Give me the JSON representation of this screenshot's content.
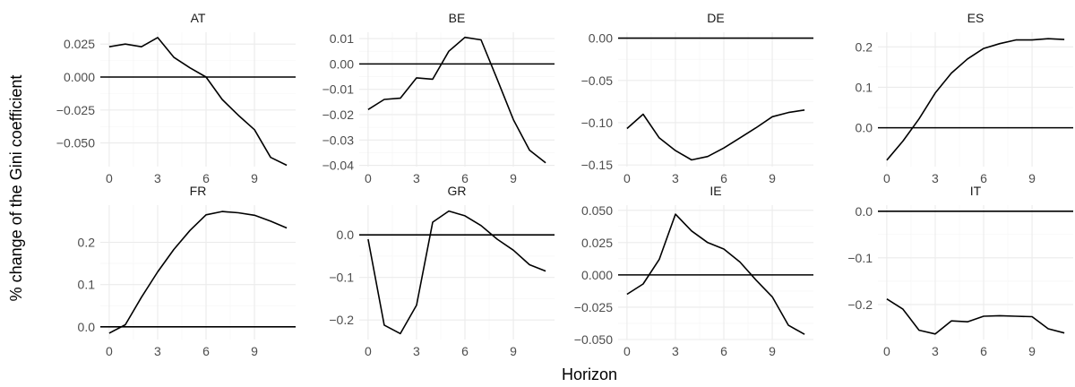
{
  "chart_data": {
    "type": "line",
    "xlabel": "Horizon",
    "ylabel": "% change of the Gini coefficient",
    "x_ticks": [
      0,
      3,
      6,
      9
    ],
    "reference_line": 0,
    "panels": [
      {
        "title": "AT",
        "x": [
          0,
          1,
          2,
          3,
          4,
          5,
          6,
          7,
          8,
          9,
          10,
          11
        ],
        "y": [
          0.023,
          0.025,
          0.023,
          0.03,
          0.015,
          0.007,
          0.0,
          -0.017,
          -0.029,
          -0.04,
          -0.061,
          -0.067
        ],
        "ylim": [
          -0.068,
          0.034
        ],
        "y_ticks": [
          0.025,
          0.0,
          -0.025,
          -0.05
        ],
        "y_tick_labels": [
          "0.025",
          "0.000",
          "−0.025",
          "−0.050"
        ]
      },
      {
        "title": "BE",
        "x": [
          0,
          1,
          2,
          3,
          4,
          5,
          6,
          7,
          8,
          9,
          10,
          11
        ],
        "y": [
          -0.018,
          -0.014,
          -0.0135,
          -0.0055,
          -0.006,
          0.005,
          0.0105,
          0.0095,
          -0.006,
          -0.022,
          -0.034,
          -0.039
        ],
        "ylim": [
          -0.0405,
          0.0125
        ],
        "y_ticks": [
          0.01,
          0.0,
          -0.01,
          -0.02,
          -0.03,
          -0.04
        ],
        "y_tick_labels": [
          "0.01",
          "0.00",
          "−0.01",
          "−0.02",
          "−0.03",
          "−0.04"
        ]
      },
      {
        "title": "DE",
        "x": [
          0,
          1,
          2,
          3,
          4,
          5,
          6,
          7,
          8,
          9,
          10,
          11
        ],
        "y": [
          -0.107,
          -0.09,
          -0.118,
          -0.133,
          -0.144,
          -0.14,
          -0.13,
          -0.118,
          -0.106,
          -0.093,
          -0.088,
          -0.085
        ],
        "ylim": [
          -0.152,
          0.007
        ],
        "y_ticks": [
          0.0,
          -0.05,
          -0.1,
          -0.15
        ],
        "y_tick_labels": [
          "0.00",
          "−0.05",
          "−0.10",
          "−0.15"
        ]
      },
      {
        "title": "ES",
        "x": [
          0,
          1,
          2,
          3,
          4,
          5,
          6,
          7,
          8,
          9,
          10,
          11
        ],
        "y": [
          -0.08,
          -0.033,
          0.022,
          0.086,
          0.135,
          0.17,
          0.196,
          0.208,
          0.217,
          0.217,
          0.22,
          0.218
        ],
        "ylim": [
          -0.096,
          0.236
        ],
        "y_ticks": [
          0.2,
          0.1,
          0.0
        ],
        "y_tick_labels": [
          "0.2",
          "0.1",
          "0.0"
        ]
      },
      {
        "title": "FR",
        "x": [
          0,
          1,
          2,
          3,
          4,
          5,
          6,
          7,
          8,
          9,
          10,
          11
        ],
        "y": [
          -0.015,
          0.005,
          0.07,
          0.13,
          0.183,
          0.228,
          0.265,
          0.273,
          0.27,
          0.264,
          0.25,
          0.234
        ],
        "ylim": [
          -0.03,
          0.288
        ],
        "y_ticks": [
          0.2,
          0.1,
          0.0
        ],
        "y_tick_labels": [
          "0.2",
          "0.1",
          "0.0"
        ]
      },
      {
        "title": "GR",
        "x": [
          0,
          1,
          2,
          3,
          4,
          5,
          6,
          7,
          8,
          9,
          10,
          11
        ],
        "y": [
          -0.01,
          -0.212,
          -0.232,
          -0.165,
          0.03,
          0.056,
          0.045,
          0.022,
          -0.01,
          -0.036,
          -0.07,
          -0.085
        ],
        "ylim": [
          -0.246,
          0.07
        ],
        "y_ticks": [
          0.0,
          -0.1,
          -0.2
        ],
        "y_tick_labels": [
          "0.0",
          "−0.1",
          "−0.2"
        ]
      },
      {
        "title": "IE",
        "x": [
          0,
          1,
          2,
          3,
          4,
          5,
          6,
          7,
          8,
          9,
          10,
          11
        ],
        "y": [
          -0.015,
          -0.007,
          0.012,
          0.047,
          0.034,
          0.025,
          0.02,
          0.01,
          -0.004,
          -0.017,
          -0.039,
          -0.046
        ],
        "ylim": [
          -0.05,
          0.054
        ],
        "y_ticks": [
          0.05,
          0.025,
          0.0,
          -0.025,
          -0.05
        ],
        "y_tick_labels": [
          "0.050",
          "0.025",
          "0.000",
          "−0.025",
          "−0.050"
        ]
      },
      {
        "title": "IT",
        "x": [
          0,
          1,
          2,
          3,
          4,
          5,
          6,
          7,
          8,
          9,
          10,
          11
        ],
        "y": [
          -0.188,
          -0.21,
          -0.255,
          -0.263,
          -0.235,
          -0.237,
          -0.225,
          -0.224,
          -0.225,
          -0.226,
          -0.252,
          -0.261
        ],
        "ylim": [
          -0.275,
          0.013
        ],
        "y_ticks": [
          0.0,
          -0.1,
          -0.2
        ],
        "y_tick_labels": [
          "0.0",
          "−0.1",
          "−0.2"
        ]
      }
    ]
  }
}
